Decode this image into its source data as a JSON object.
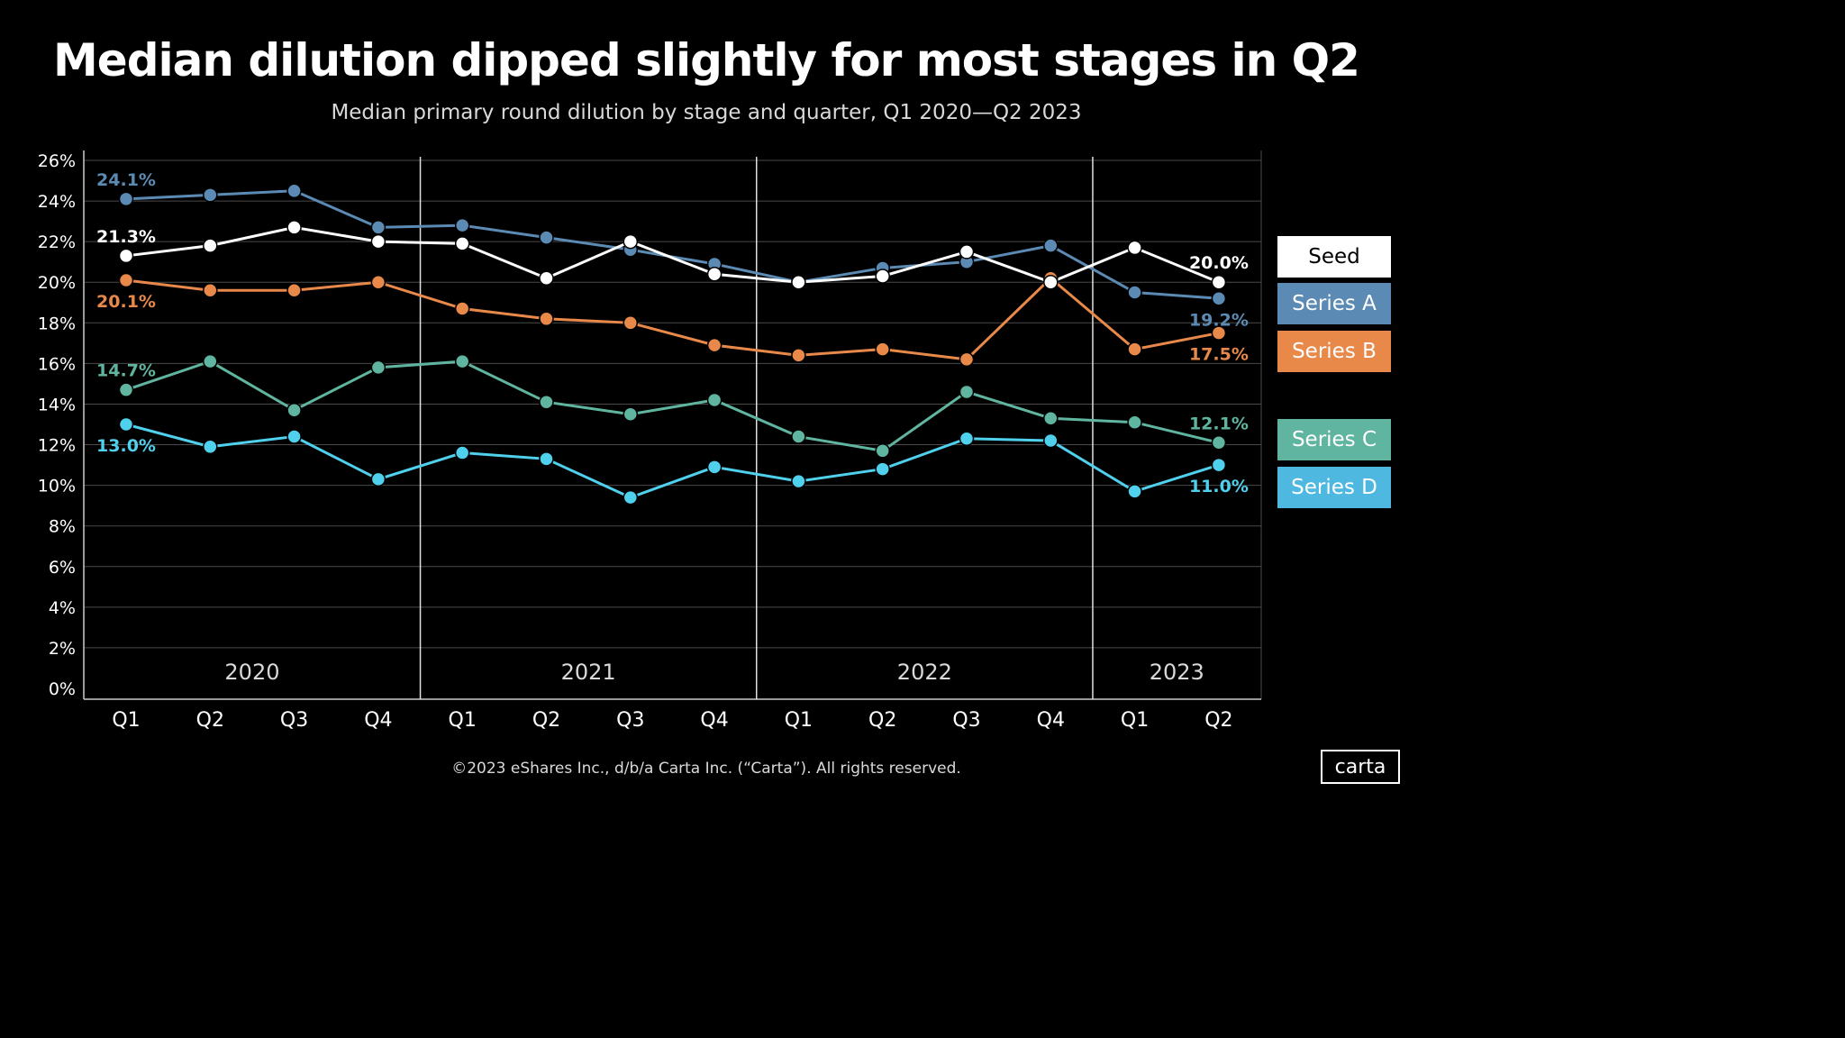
{
  "title": "Median dilution dipped slightly for most stages in Q2",
  "subtitle": "Median primary round dilution by stage and quarter, Q1 2020—Q2 2023",
  "footer": "©2023 eShares Inc., d/b/a Carta Inc. (“Carta”). All rights reserved.",
  "logo": "carta",
  "chart_data": {
    "type": "line",
    "categories": [
      "Q1",
      "Q2",
      "Q3",
      "Q4",
      "Q1",
      "Q2",
      "Q3",
      "Q4",
      "Q1",
      "Q2",
      "Q3",
      "Q4",
      "Q1",
      "Q2"
    ],
    "years": [
      {
        "label": "2020",
        "start": 0,
        "end": 3
      },
      {
        "label": "2021",
        "start": 4,
        "end": 7
      },
      {
        "label": "2022",
        "start": 8,
        "end": 11
      },
      {
        "label": "2023",
        "start": 12,
        "end": 13
      }
    ],
    "ylim": [
      0,
      26
    ],
    "yticks": [
      0,
      2,
      4,
      6,
      8,
      10,
      12,
      14,
      16,
      18,
      20,
      22,
      24,
      26
    ],
    "ytick_labels": [
      "0%",
      "2%",
      "4%",
      "6%",
      "8%",
      "10%",
      "12%",
      "14%",
      "16%",
      "18%",
      "20%",
      "22%",
      "24%",
      "26%"
    ],
    "grid": true,
    "legend_position": "right",
    "series": [
      {
        "name": "Series A",
        "color": "#5b8bb4",
        "text_color": "#ffffff",
        "values": [
          24.1,
          24.3,
          24.5,
          22.7,
          22.8,
          22.2,
          21.6,
          20.9,
          20.0,
          20.7,
          21.0,
          21.8,
          19.5,
          19.2
        ],
        "labels": {
          "0": {
            "text": "24.1%",
            "pos": "above"
          },
          "13": {
            "text": "19.2%",
            "pos": "below"
          }
        }
      },
      {
        "name": "Seed",
        "color": "#ffffff",
        "text_color": "#000000",
        "values": [
          21.3,
          21.8,
          22.7,
          22.0,
          21.9,
          20.2,
          22.0,
          20.4,
          20.0,
          20.3,
          21.5,
          20.0,
          21.7,
          20.0
        ],
        "labels": {
          "0": {
            "text": "21.3%",
            "pos": "above"
          },
          "13": {
            "text": "20.0%",
            "pos": "above"
          }
        }
      },
      {
        "name": "Series B",
        "color": "#e8894a",
        "text_color": "#ffffff",
        "values": [
          20.1,
          19.6,
          19.6,
          20.0,
          18.7,
          18.2,
          18.0,
          16.9,
          16.4,
          16.7,
          16.2,
          20.2,
          16.7,
          17.5
        ],
        "labels": {
          "0": {
            "text": "20.1%",
            "pos": "below"
          },
          "13": {
            "text": "17.5%",
            "pos": "below"
          }
        }
      },
      {
        "name": "Series C",
        "color": "#5fb5a0",
        "text_color": "#ffffff",
        "values": [
          14.7,
          16.1,
          13.7,
          15.8,
          16.1,
          14.1,
          13.5,
          14.2,
          12.4,
          11.7,
          14.6,
          13.3,
          13.1,
          12.1
        ],
        "labels": {
          "0": {
            "text": "14.7%",
            "pos": "above"
          },
          "13": {
            "text": "12.1%",
            "pos": "above"
          }
        }
      },
      {
        "name": "Series D",
        "color": "#4fd0ec",
        "text_color": "#ffffff",
        "values": [
          13.0,
          11.9,
          12.4,
          10.3,
          11.6,
          11.3,
          9.4,
          10.9,
          10.2,
          10.8,
          12.3,
          12.2,
          9.7,
          11.0
        ],
        "labels": {
          "0": {
            "text": "13.0%",
            "pos": "below"
          },
          "13": {
            "text": "11.0%",
            "pos": "below"
          }
        }
      }
    ],
    "legend": [
      {
        "name": "Seed",
        "bg": "#ffffff",
        "fg": "#000000"
      },
      {
        "name": "Series A",
        "bg": "#5b8bb4",
        "fg": "#ffffff"
      },
      {
        "name": "Series B",
        "bg": "#e8894a",
        "fg": "#ffffff"
      },
      {
        "name": "Series C",
        "bg": "#5fb5a0",
        "fg": "#ffffff"
      },
      {
        "name": "Series D",
        "bg": "#4fb8e0",
        "fg": "#ffffff"
      }
    ]
  }
}
